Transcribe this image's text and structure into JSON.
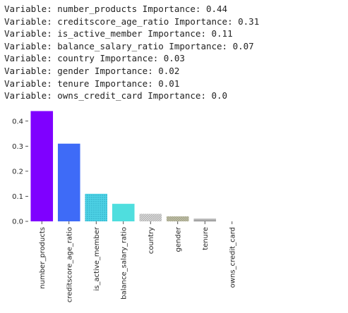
{
  "log": {
    "lines": [
      "Variable: number_products Importance: 0.44",
      "Variable: creditscore_age_ratio Importance: 0.31",
      "Variable: is_active_member Importance: 0.11",
      "Variable: balance_salary_ratio Importance: 0.07",
      "Variable: country Importance: 0.03",
      "Variable: gender Importance: 0.02",
      "Variable: tenure Importance: 0.01",
      "Variable: owns_credit_card Importance: 0.0"
    ]
  },
  "chart_data": {
    "type": "bar",
    "categories": [
      "number_products",
      "creditscore_age_ratio",
      "is_active_member",
      "balance_salary_ratio",
      "country",
      "gender",
      "tenure",
      "owns_credit_card"
    ],
    "values": [
      0.44,
      0.31,
      0.11,
      0.07,
      0.03,
      0.02,
      0.01,
      0.0
    ],
    "colors": [
      "#7f00ff",
      "#3e6bf7",
      "#2cc9e0",
      "#4fdede",
      "#d4d4d4",
      "#b3b39c",
      "#a5a5a5",
      "#ff4d2e"
    ],
    "ylim": [
      0,
      0.45
    ],
    "yticks": [
      0.0,
      0.1,
      0.2,
      0.3,
      0.4
    ],
    "ytick_labels": [
      "0.0",
      "0.1",
      "0.2",
      "0.3",
      "0.4"
    ],
    "xtick_rotation": "vertical",
    "grid": false,
    "legend": "none",
    "title": "",
    "xlabel": "",
    "ylabel": ""
  }
}
